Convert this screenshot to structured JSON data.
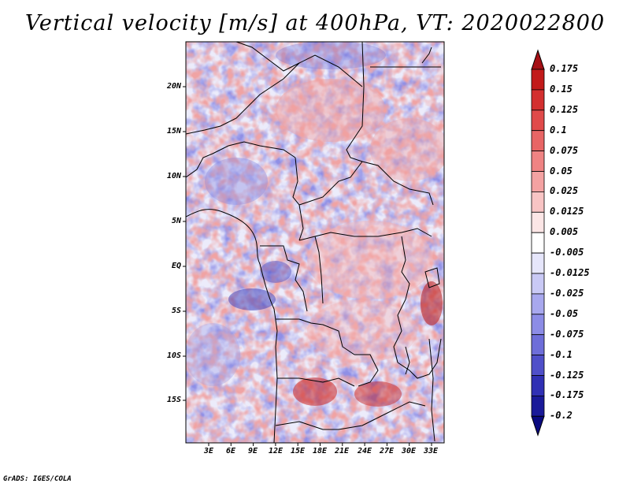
{
  "title": "Vertical velocity [m/s] at 400hPa, VT: 2020022800",
  "footer": "GrADS: IGES/COLA",
  "map": {
    "lat_labels": [
      "20N",
      "15N",
      "10N",
      "5N",
      "EQ",
      "5S",
      "10S",
      "15S"
    ],
    "lon_labels": [
      "3E",
      "6E",
      "9E",
      "12E",
      "15E",
      "18E",
      "21E",
      "24E",
      "27E",
      "30E",
      "33E"
    ]
  },
  "colorbar": {
    "labels": [
      "0.175",
      "0.15",
      "0.125",
      "0.1",
      "0.075",
      "0.05",
      "0.025",
      "0.0125",
      "0.005",
      "-0.005",
      "-0.0125",
      "-0.025",
      "-0.05",
      "-0.075",
      "-0.1",
      "-0.125",
      "-0.175",
      "-0.2"
    ],
    "colors": [
      "#a50f15",
      "#c21a1a",
      "#d32f2f",
      "#e04a4a",
      "#e86565",
      "#ef8383",
      "#f4a2a2",
      "#f8c4c4",
      "#fce6e6",
      "#ffffff",
      "#e6e6fb",
      "#c9c9f5",
      "#a8a8ee",
      "#8c8ce6",
      "#6e6ed9",
      "#4f4fc9",
      "#3030b4",
      "#1a1a99",
      "#0a0a80"
    ]
  }
}
